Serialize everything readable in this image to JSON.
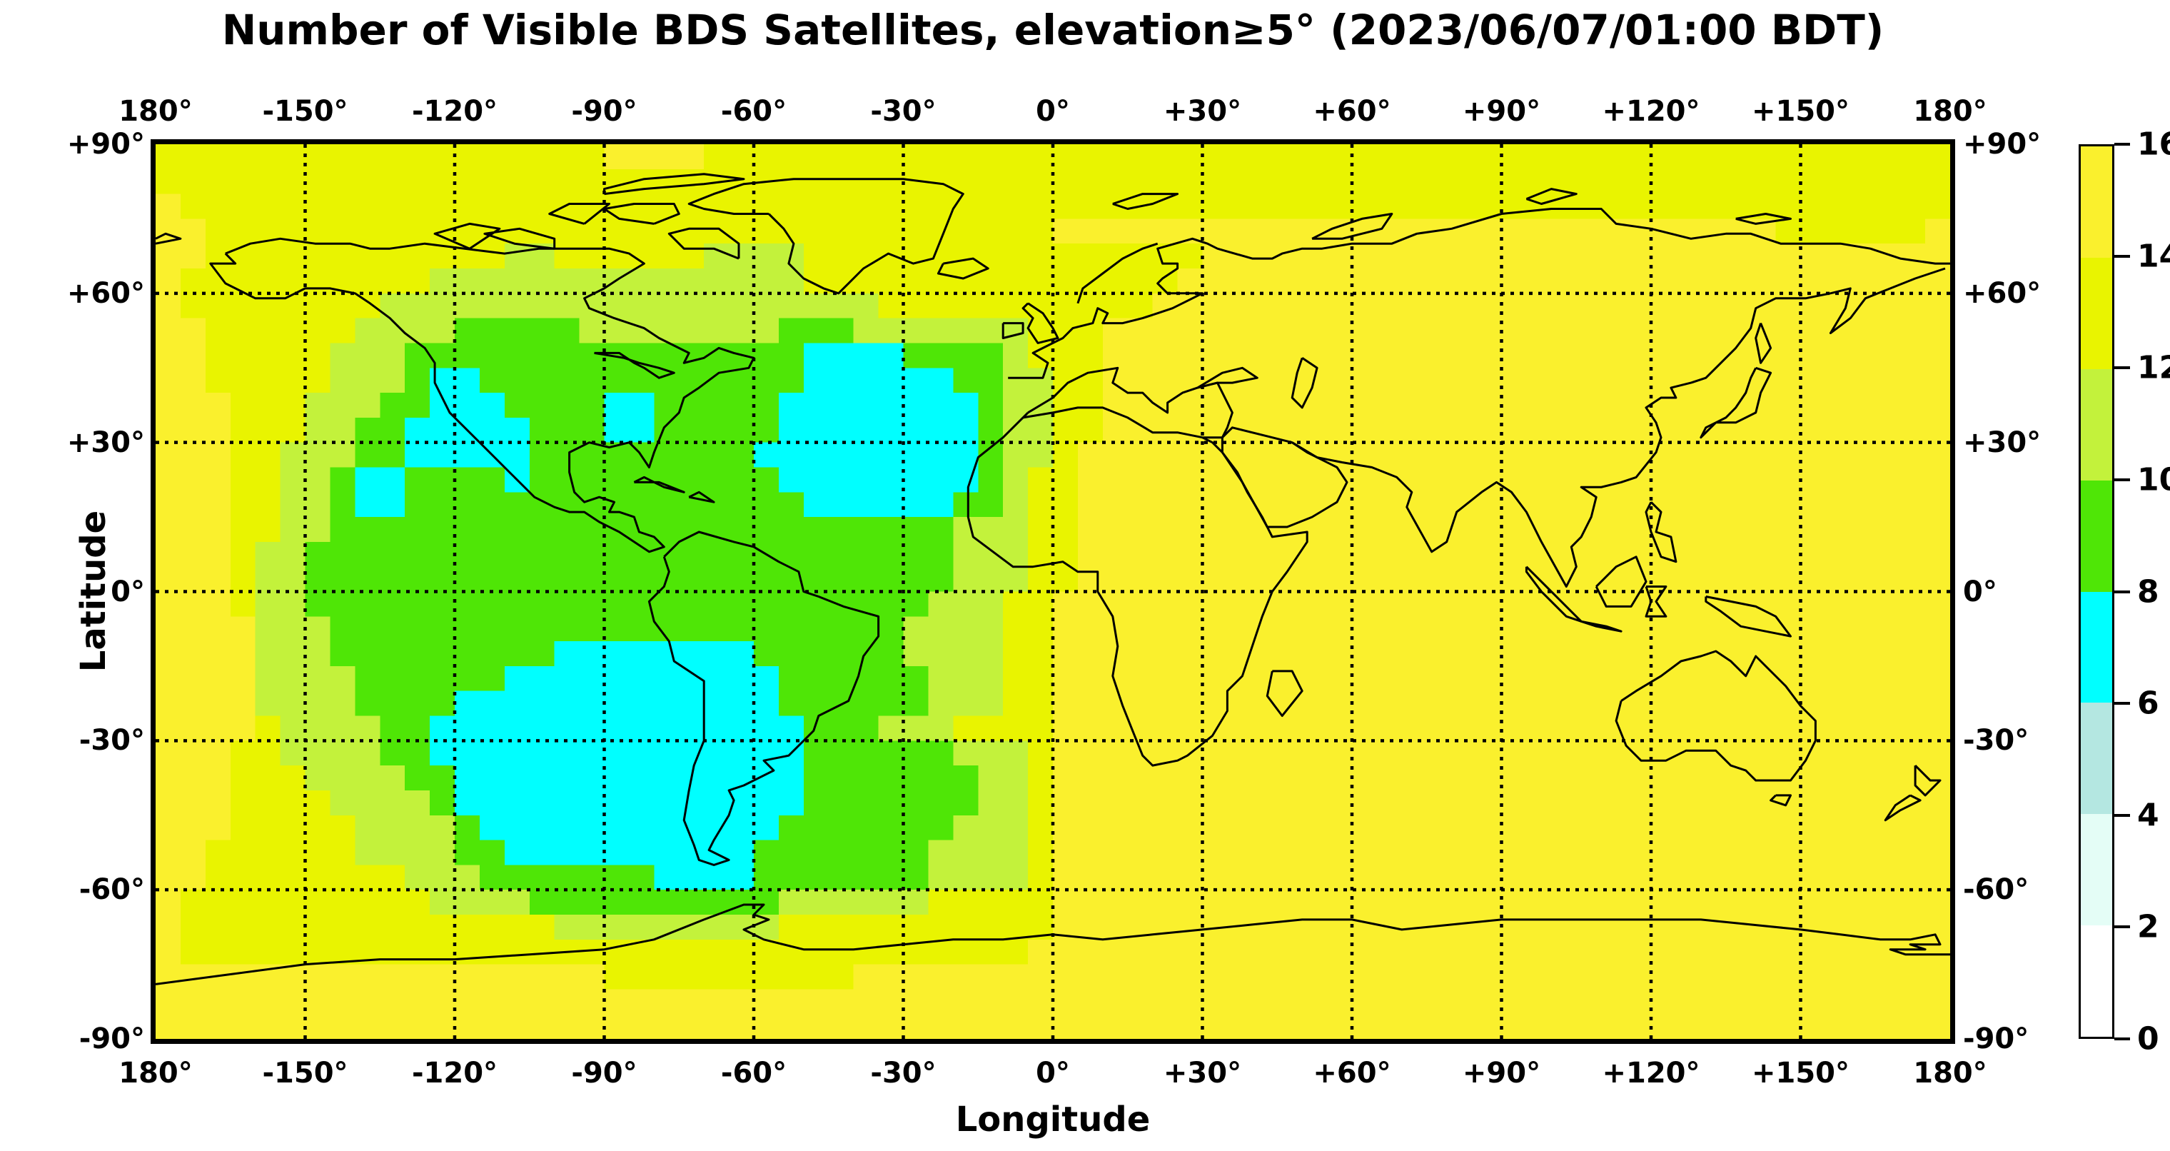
{
  "title": "Number of Visible BDS Satellites, elevation≥5° (2023/06/07/01:00 BDT)",
  "axes": {
    "x_label": "Longitude",
    "y_label": "Latitude",
    "x_tick_labels": [
      "180°",
      "-150°",
      "-120°",
      "-90°",
      "-60°",
      "-30°",
      "0°",
      "+30°",
      "+60°",
      "+90°",
      "+120°",
      "+150°",
      "180°"
    ],
    "x_tick_values": [
      -180,
      -150,
      -120,
      -90,
      -60,
      -30,
      0,
      30,
      60,
      90,
      120,
      150,
      180
    ],
    "y_tick_labels": [
      "+90°",
      "+60°",
      "+30°",
      "0°",
      "-30°",
      "-60°",
      "-90°"
    ],
    "y_tick_values": [
      90,
      60,
      30,
      0,
      -30,
      -60,
      -90
    ]
  },
  "colorbar": {
    "tick_labels": [
      "16",
      "14",
      "12",
      "10",
      "8",
      "6",
      "4",
      "2",
      "0"
    ],
    "tick_values": [
      16,
      14,
      12,
      10,
      8,
      6,
      4,
      2,
      0
    ],
    "segment_colors_bottom_to_top": [
      "#ffffff",
      "#e4fdf6",
      "#b4e7e1",
      "#00ffff",
      "#4fe606",
      "#c3f23b",
      "#e9f400",
      "#faf02d"
    ]
  },
  "chart_data": {
    "type": "heatmap",
    "title": "Number of Visible BDS Satellites, elevation≥5° (2023/06/07/01:00 BDT)",
    "xlabel": "Longitude",
    "ylabel": "Latitude",
    "xlim": [
      -180,
      180
    ],
    "ylim": [
      -90,
      90
    ],
    "grid_on": true,
    "grid_interval_deg": 30,
    "legend_position": "right-colorbar",
    "value_name": "visible BDS satellites",
    "levels": [
      0,
      2,
      4,
      6,
      8,
      10,
      12,
      14,
      16
    ],
    "level_colors": [
      "#ffffff",
      "#e4fdf6",
      "#b4e7e1",
      "#00ffff",
      "#4fe606",
      "#c3f23b",
      "#e9f400",
      "#faf02d"
    ],
    "cell_size_deg": 5,
    "grid_encoding": "RLE rows top(+90..+85) to bottom(-85..-90), lon -180..+180; digit = level band index (band n covers values 2n..2n+2 satellites)",
    "grid_rle": [
      "18x6,4x7,50x6",
      "72x6",
      "1x7,71x6",
      "2x7,34x6,29x7,6x6,1x7",
      "2x7,12x6,2x5,6x6,4x5,16x6,30x7",
      "1x7,10x6,15x5,15x6,31x7",
      "1x7,8x6,20x5,11x6,32x7",
      "2x7,6x6,4x5,5x4,8x5,3x4,7x5,3x6,34x7",
      "2x7,5x6,3x5,16x4,4x3,4x4,1x5,3x6,34x7",
      "2x7,5x6,3x5,1x4,2x3,13x4,6x3,2x4,2x5,2x6,34x7",
      "3x7,3x6,3x5,2x4,3x3,4x4,2x3,5x4,8x3,1x4,2x5,2x6,34x7",
      "3x7,3x6,2x5,2x4,5x3,3x4,2x3,5x4,8x3,1x4,2x5,2x6,34x7",
      "3x7,2x6,3x5,2x4,5x3,9x4,9x3,1x4,2x5,1x6,35x7",
      "3x7,2x6,2x5,1x4,2x3,4x4,1x3,10x4,8x3,1x4,1x5,2x6,35x7",
      "3x7,2x6,2x5,1x4,2x3,16x4,6x3,2x4,1x5,2x6,35x7",
      "3x7,2x6,2x5,25x4,3x5,2x6,35x7",
      "3x7,1x6,2x5,26x4,3x5,2x6,35x7",
      "3x7,1x6,2x5,26x4,3x5,2x6,35x7",
      "3x7,1x6,2x5,25x4,3x5,2x6,36x7",
      "4x7,3x5,23x4,4x5,2x6,36x7",
      "4x7,3x5,9x4,8x3,6x4,4x5,2x6,36x7",
      "4x7,4x5,6x4,11x3,6x4,3x5,2x6,36x7",
      "4x7,4x5,4x4,13x3,6x4,3x5,2x6,36x7",
      "4x7,1x6,4x5,2x4,15x3,3x4,3x5,4x6,36x7",
      "3x7,2x6,4x5,2x4,15x3,6x4,3x5,1x6,36x7",
      "3x7,3x6,4x5,2x4,14x3,7x4,2x5,1x6,36x7",
      "3x7,4x6,4x5,1x4,14x3,7x4,2x5,1x6,36x7",
      "3x7,5x6,4x5,1x4,12x3,7x4,3x5,1x6,36x7",
      "2x7,6x6,4x5,2x4,10x3,7x4,4x5,1x6,36x7",
      "2x7,8x6,3x5,7x4,4x3,7x4,4x5,1x6,36x7",
      "1x7,10x6,4x5,10x4,6x5,5x6,36x7",
      "1x7,15x6,9x5,11x6,36x7",
      "1x7,34x6,37x7",
      "18x7,10x6,44x7",
      "72x7",
      "72x7"
    ]
  }
}
